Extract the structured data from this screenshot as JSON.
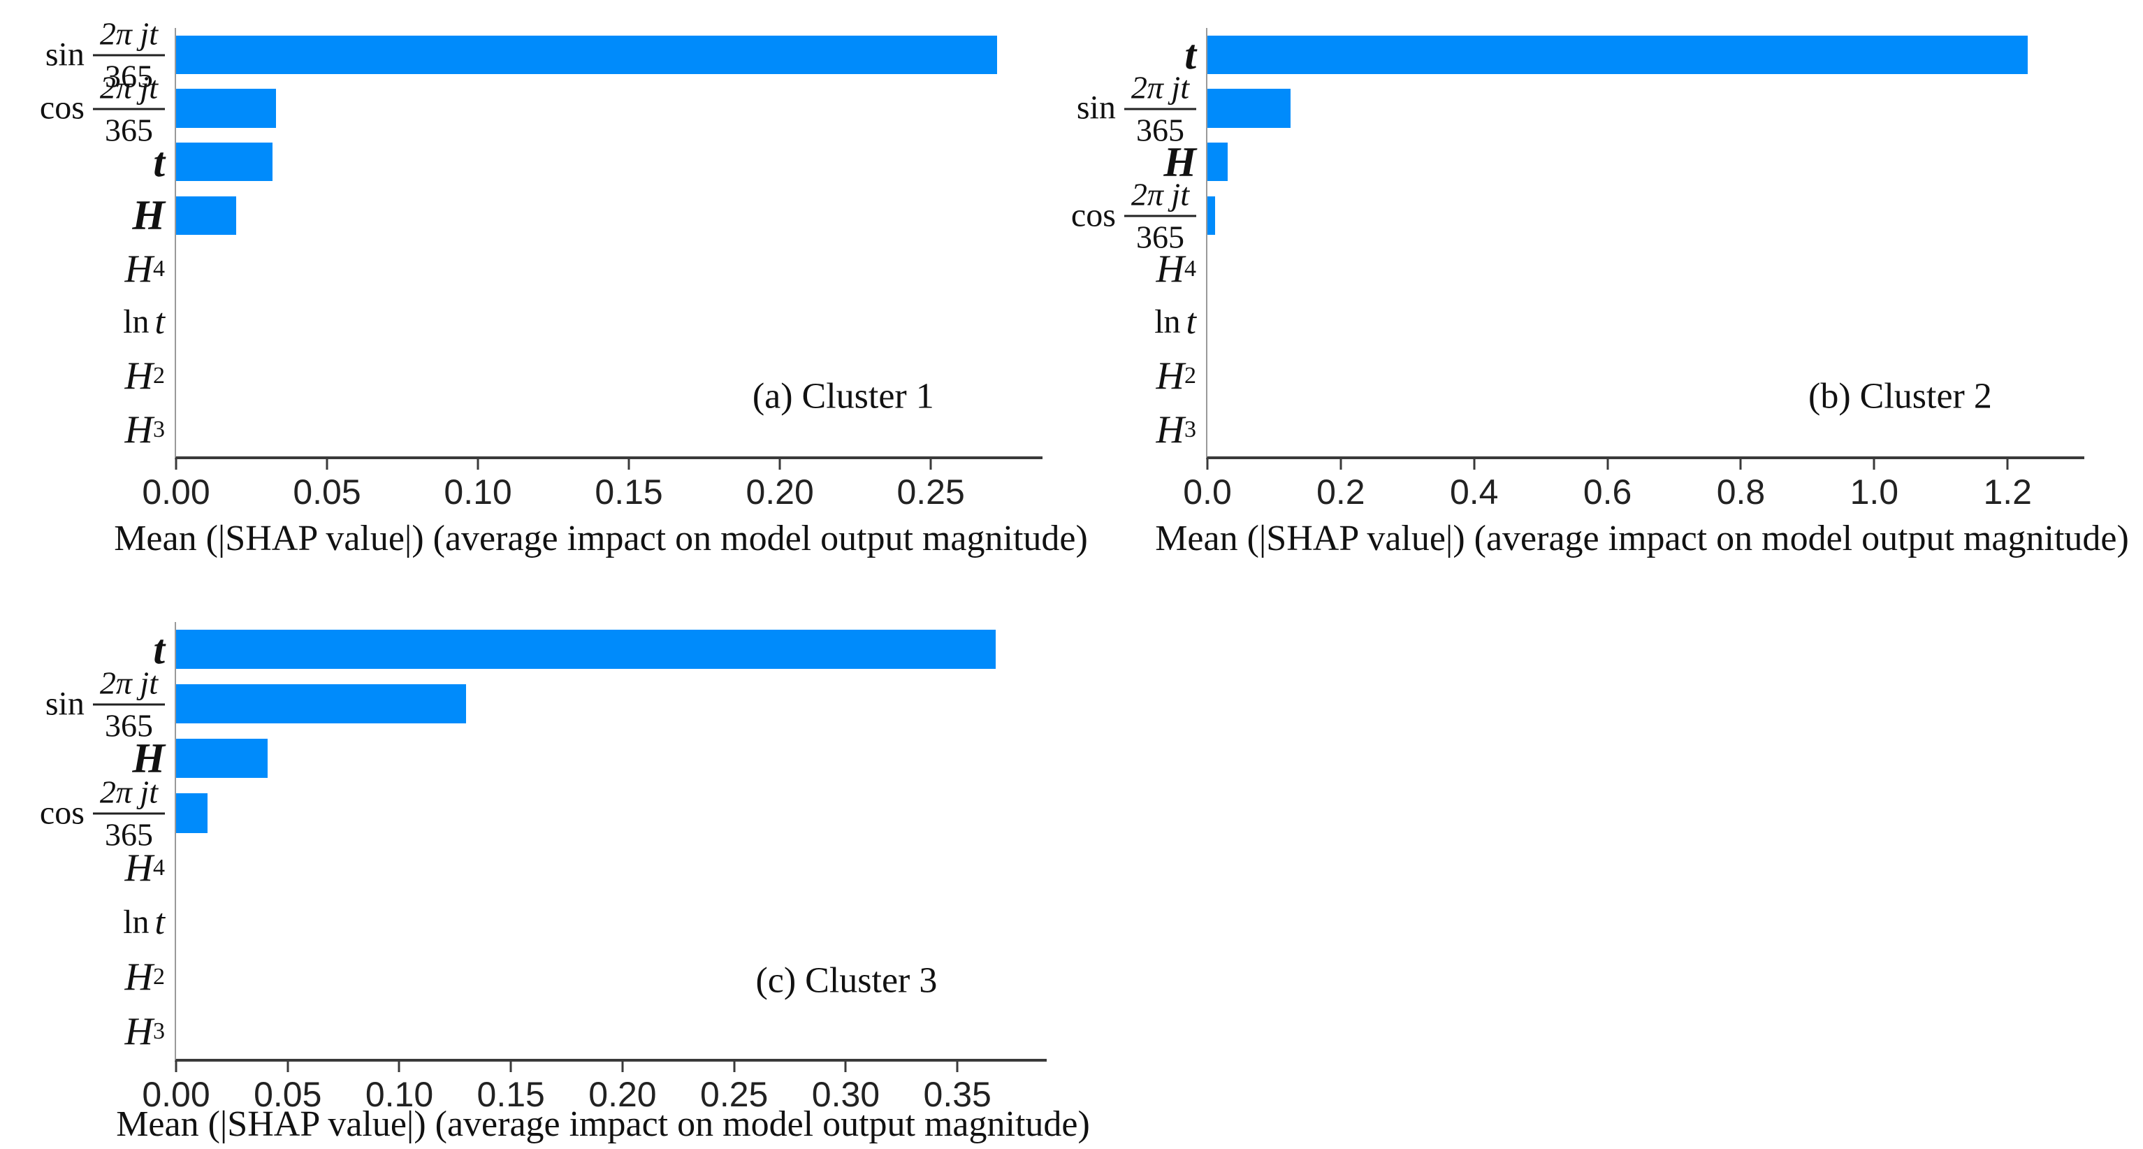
{
  "figure": {
    "bar_color": "#008bfb",
    "x_axis_color": "#3a3a3a",
    "y_spine_color": "#9a9a9a",
    "text_color": "#111111"
  },
  "chart_data": [
    {
      "type": "bar",
      "orientation": "horizontal",
      "caption": "(a) Cluster 1",
      "xlabel": "Mean (|SHAP value|) (average impact on model output magnitude)",
      "grid": false,
      "legend": false,
      "xlim": [
        0,
        0.287
      ],
      "xticks": [
        0,
        0.05,
        0.1,
        0.15,
        0.2,
        0.25
      ],
      "xtick_labels": [
        "0.00",
        "0.05",
        "0.10",
        "0.15",
        "0.20",
        "0.25"
      ],
      "categories": [
        {
          "id": "sin-2pijt-365",
          "kind": "frac",
          "prefix": "sin",
          "numerator": "2π jt",
          "denominator": "365",
          "label": "sin 2πjt/365"
        },
        {
          "id": "cos-2pijt-365",
          "kind": "frac",
          "prefix": "cos",
          "numerator": "2π jt",
          "denominator": "365",
          "label": "cos 2πjt/365"
        },
        {
          "id": "t",
          "kind": "plain",
          "text": "t",
          "bold": true,
          "label": "t"
        },
        {
          "id": "H",
          "kind": "plain",
          "text": "H",
          "bold": true,
          "label": "H"
        },
        {
          "id": "H4",
          "kind": "power",
          "base": "H",
          "exponent": "4",
          "label": "H^4"
        },
        {
          "id": "ln-t",
          "kind": "func",
          "prefix": "ln",
          "text": "t",
          "label": "ln t"
        },
        {
          "id": "H2",
          "kind": "power",
          "base": "H",
          "exponent": "2",
          "label": "H^2"
        },
        {
          "id": "H3",
          "kind": "power",
          "base": "H",
          "exponent": "3",
          "label": "H^3"
        }
      ],
      "values": [
        0.272,
        0.033,
        0.032,
        0.02,
        0,
        0,
        0,
        0
      ]
    },
    {
      "type": "bar",
      "orientation": "horizontal",
      "caption": "(b) Cluster 2",
      "xlabel": "Mean (|SHAP value|) (average impact on model output magnitude)",
      "grid": false,
      "legend": false,
      "xlim": [
        0,
        1.315
      ],
      "xticks": [
        0,
        0.2,
        0.4,
        0.6,
        0.8,
        1.0,
        1.2
      ],
      "xtick_labels": [
        "0.0",
        "0.2",
        "0.4",
        "0.6",
        "0.8",
        "1.0",
        "1.2"
      ],
      "categories": [
        {
          "id": "t",
          "kind": "plain",
          "text": "t",
          "bold": true,
          "label": "t"
        },
        {
          "id": "sin-2pijt-365",
          "kind": "frac",
          "prefix": "sin",
          "numerator": "2π jt",
          "denominator": "365",
          "label": "sin 2πjt/365"
        },
        {
          "id": "H",
          "kind": "plain",
          "text": "H",
          "bold": true,
          "label": "H"
        },
        {
          "id": "cos-2pijt-365",
          "kind": "frac",
          "prefix": "cos",
          "numerator": "2π jt",
          "denominator": "365",
          "label": "cos 2πjt/365"
        },
        {
          "id": "H4",
          "kind": "power",
          "base": "H",
          "exponent": "4",
          "label": "H^4"
        },
        {
          "id": "ln-t",
          "kind": "func",
          "prefix": "ln",
          "text": "t",
          "label": "ln t"
        },
        {
          "id": "H2",
          "kind": "power",
          "base": "H",
          "exponent": "2",
          "label": "H^2"
        },
        {
          "id": "H3",
          "kind": "power",
          "base": "H",
          "exponent": "3",
          "label": "H^3"
        }
      ],
      "values": [
        1.23,
        0.125,
        0.03,
        0.012,
        0,
        0,
        0,
        0
      ]
    },
    {
      "type": "bar",
      "orientation": "horizontal",
      "caption": "(c) Cluster 3",
      "xlabel": "Mean (|SHAP value|) (average impact on model output magnitude)",
      "grid": false,
      "legend": false,
      "xlim": [
        0,
        0.39
      ],
      "xticks": [
        0,
        0.05,
        0.1,
        0.15,
        0.2,
        0.25,
        0.3,
        0.35
      ],
      "xtick_labels": [
        "0.00",
        "0.05",
        "0.10",
        "0.15",
        "0.20",
        "0.25",
        "0.30",
        "0.35"
      ],
      "categories": [
        {
          "id": "t",
          "kind": "plain",
          "text": "t",
          "bold": true,
          "label": "t"
        },
        {
          "id": "sin-2pijt-365",
          "kind": "frac",
          "prefix": "sin",
          "numerator": "2π jt",
          "denominator": "365",
          "label": "sin 2πjt/365"
        },
        {
          "id": "H",
          "kind": "plain",
          "text": "H",
          "bold": true,
          "label": "H"
        },
        {
          "id": "cos-2pijt-365",
          "kind": "frac",
          "prefix": "cos",
          "numerator": "2π jt",
          "denominator": "365",
          "label": "cos 2πjt/365"
        },
        {
          "id": "H4",
          "kind": "power",
          "base": "H",
          "exponent": "4",
          "label": "H^4"
        },
        {
          "id": "ln-t",
          "kind": "func",
          "prefix": "ln",
          "text": "t",
          "label": "ln t"
        },
        {
          "id": "H2",
          "kind": "power",
          "base": "H",
          "exponent": "2",
          "label": "H^2"
        },
        {
          "id": "H3",
          "kind": "power",
          "base": "H",
          "exponent": "3",
          "label": "H^3"
        }
      ],
      "values": [
        0.367,
        0.13,
        0.041,
        0.014,
        0,
        0,
        0,
        0
      ]
    }
  ]
}
